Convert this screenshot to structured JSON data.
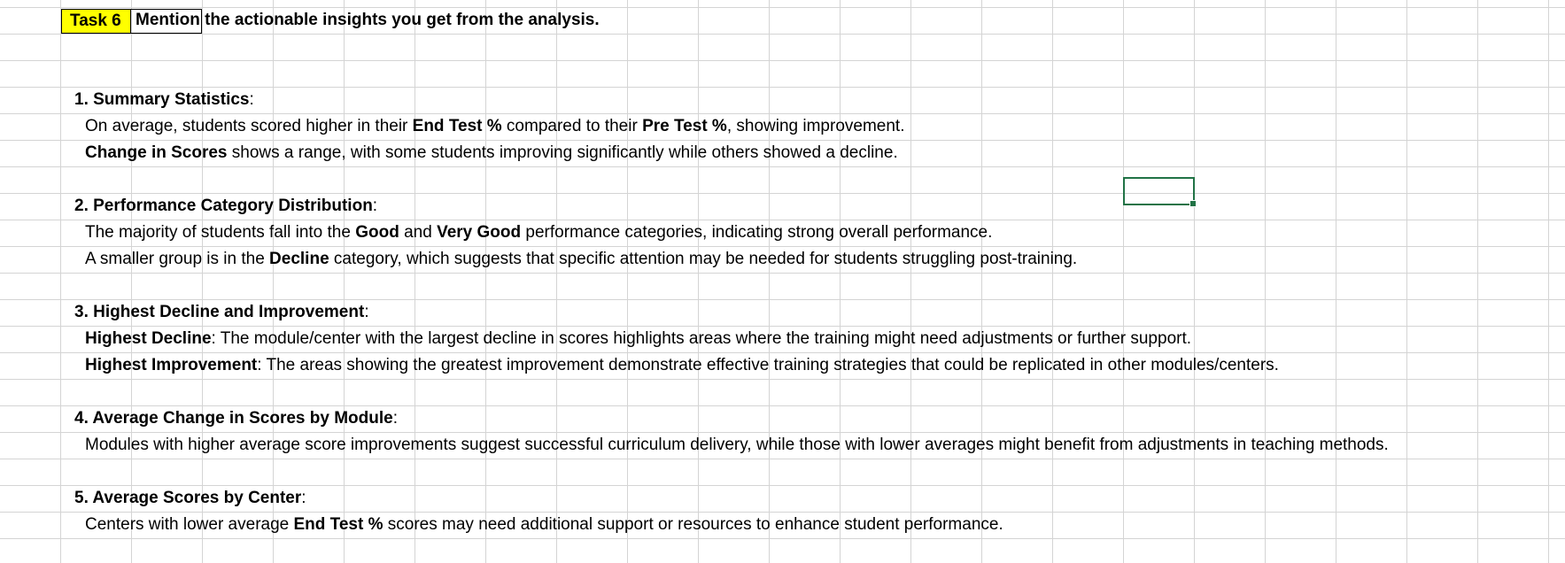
{
  "task": {
    "label": "Task 6",
    "title": "Mention the actionable insights you get from the analysis."
  },
  "sections": [
    {
      "heading": "1. Summary Statistics",
      "lines": [
        [
          {
            "t": "On average, students scored higher in their "
          },
          {
            "t": "End Test %",
            "b": true
          },
          {
            "t": " compared to their "
          },
          {
            "t": "Pre Test %",
            "b": true
          },
          {
            "t": ", showing improvement."
          }
        ],
        [
          {
            "t": "Change in Scores",
            "b": true
          },
          {
            "t": " shows a range, with some students improving significantly while others showed a decline."
          }
        ]
      ]
    },
    {
      "heading": "2. Performance Category Distribution",
      "lines": [
        [
          {
            "t": "The majority of students fall into the "
          },
          {
            "t": "Good",
            "b": true
          },
          {
            "t": " and "
          },
          {
            "t": "Very Good",
            "b": true
          },
          {
            "t": " performance categories, indicating strong overall performance."
          }
        ],
        [
          {
            "t": "A smaller group is in the "
          },
          {
            "t": "Decline",
            "b": true
          },
          {
            "t": " category, which suggests that specific attention may be needed for students struggling post-training."
          }
        ]
      ]
    },
    {
      "heading": "3. Highest Decline and Improvement",
      "lines": [
        [
          {
            "t": "Highest Decline",
            "b": true
          },
          {
            "t": ": The module/center with the largest decline in scores highlights areas where the training might need adjustments or further support."
          }
        ],
        [
          {
            "t": "Highest Improvement",
            "b": true
          },
          {
            "t": ": The areas showing the greatest improvement demonstrate effective training strategies that could be replicated in other modules/centers."
          }
        ]
      ]
    },
    {
      "heading": "4. Average Change in Scores by Module",
      "lines": [
        [
          {
            "t": "Modules with higher average score improvements suggest successful curriculum delivery, while those with lower averages might benefit from adjustments in teaching methods."
          }
        ]
      ]
    },
    {
      "heading": "5. Average Scores by Center",
      "lines": [
        [
          {
            "t": "Centers with lower average "
          },
          {
            "t": "End Test %",
            "b": true
          },
          {
            "t": " scores may need additional support or resources to enhance student performance."
          }
        ]
      ]
    }
  ],
  "colors": {
    "gridline": "#d4d4d4",
    "highlight": "#ffff00",
    "selection": "#217346"
  }
}
